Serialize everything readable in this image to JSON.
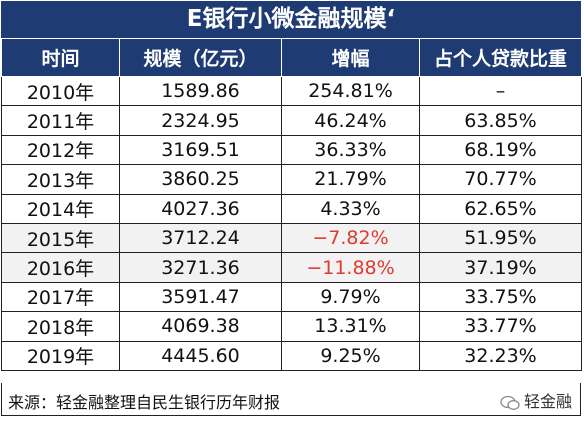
{
  "title": "E银行小微金融规模‘",
  "headers": [
    "时间",
    "规模（亿元）",
    "增幅",
    "占个人贷款比重"
  ],
  "rows": [
    {
      "year": "2010年",
      "scale": "1589.86",
      "growth": "254.81%",
      "share": "–",
      "negative": false
    },
    {
      "year": "2011年",
      "scale": "2324.95",
      "growth": "46.24%",
      "share": "63.85%",
      "negative": false
    },
    {
      "year": "2012年",
      "scale": "3169.51",
      "growth": "36.33%",
      "share": "68.19%",
      "negative": false
    },
    {
      "year": "2013年",
      "scale": "3860.25",
      "growth": "21.79%",
      "share": "70.77%",
      "negative": false
    },
    {
      "year": "2014年",
      "scale": "4027.36",
      "growth": "4.33%",
      "share": "62.65%",
      "negative": false
    },
    {
      "year": "2015年",
      "scale": "3712.24",
      "growth": "−7.82%",
      "share": "51.95%",
      "negative": true
    },
    {
      "year": "2016年",
      "scale": "3271.36",
      "growth": "−11.88%",
      "share": "37.19%",
      "negative": true
    },
    {
      "year": "2017年",
      "scale": "3591.47",
      "growth": "9.79%",
      "share": "33.75%",
      "negative": false
    },
    {
      "year": "2018年",
      "scale": "4069.38",
      "growth": "13.31%",
      "share": "33.77%",
      "negative": false
    },
    {
      "year": "2019年",
      "scale": "4445.60",
      "growth": "9.25%",
      "share": "32.23%",
      "negative": false
    }
  ],
  "footer": {
    "source": "来源：轻金融整理自民生银行历年财报",
    "brand": "轻金融",
    "brand_icon": "wechat-icon"
  },
  "colors": {
    "header_bg": "#1f3b73",
    "negative": "#e03a2f",
    "shade": "#f2f2f2"
  }
}
